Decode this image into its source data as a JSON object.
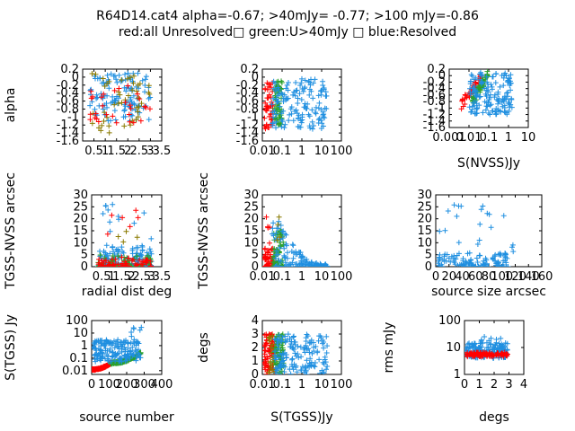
{
  "page": {
    "title_line1": "R64D14.cat4 alpha=-0.67; >40mJy= -0.77; >100 mJy=-0.86",
    "title_line2": "red:all Unresolved□ green:U>40mJy □ blue:Resolved"
  },
  "colors": {
    "red": "#ff0000",
    "green": "#2ca02c",
    "blue": "#1f8fe0",
    "olive": "#8a7a00"
  },
  "chart_data": [
    {
      "id": "p1",
      "type": "scatter",
      "title": "",
      "xlabel": "",
      "ylabel": "alpha",
      "xscale": "linear",
      "xlim": [
        0,
        3.5
      ],
      "yscale": "linear",
      "ylim": [
        -1.6,
        0.2
      ],
      "xticks": [
        "0.5",
        "1",
        "1.5",
        "2",
        "2.5",
        "3",
        "3.5"
      ],
      "yticks": [
        "0.2",
        "0",
        "-0.2",
        "-0.4",
        "-0.6",
        "-0.8",
        "-1",
        "-1.2",
        "-1.4",
        "-1.6"
      ],
      "series": [
        {
          "color": "blue",
          "cloud": {
            "n": 120,
            "x": [
              0.3,
              3.0
            ],
            "y": [
              -1.1,
              0.1
            ]
          }
        },
        {
          "color": "olive",
          "cloud": {
            "n": 45,
            "x": [
              0.3,
              3.0
            ],
            "y": [
              -1.4,
              0.1
            ]
          }
        },
        {
          "color": "red",
          "cloud": {
            "n": 30,
            "x": [
              0.3,
              3.0
            ],
            "y": [
              -1.2,
              -0.2
            ]
          }
        }
      ]
    },
    {
      "id": "p2",
      "type": "scatter",
      "title": "",
      "xlabel": "",
      "ylabel": "",
      "xscale": "log",
      "xlim": [
        0.01,
        100
      ],
      "yscale": "linear",
      "ylim": [
        -1.6,
        0.2
      ],
      "xticks": [
        "0.01",
        "0.1",
        "1",
        "10",
        "100"
      ],
      "yticks": [
        "0.2",
        "0",
        "-0.2",
        "-0.4",
        "-0.6",
        "-0.8",
        "-1",
        "-1.2",
        "-1.4",
        "-1.6"
      ],
      "series": [
        {
          "color": "red",
          "cloud": {
            "n": 45,
            "x": [
              0.012,
              0.035
            ],
            "y": [
              -1.3,
              -0.1
            ]
          }
        },
        {
          "color": "green",
          "cloud": {
            "n": 60,
            "x": [
              0.04,
              0.1
            ],
            "y": [
              -1.2,
              -0.1
            ]
          }
        },
        {
          "color": "blue",
          "cloud": {
            "n": 140,
            "x": [
              0.03,
              20
            ],
            "y": [
              -1.3,
              0.0
            ]
          }
        }
      ]
    },
    {
      "id": "p3",
      "type": "scatter",
      "title": "",
      "xlabel": "S(NVSS)Jy",
      "ylabel": "",
      "xscale": "log",
      "xlim": [
        0.001,
        10
      ],
      "yscale": "linear",
      "ylim": [
        -1.6,
        0.2
      ],
      "xticks": [
        "0.001",
        "0.01",
        "0.1",
        "1",
        "10"
      ],
      "yticks": [
        "0.2",
        "0",
        "-0.2",
        "-0.4",
        "-0.6",
        "-0.8",
        "-1",
        "-1.2",
        "-1.4",
        "-1.6"
      ],
      "series": [
        {
          "color": "red",
          "band": {
            "n": 40,
            "x": [
              0.004,
              0.04
            ],
            "y": [
              -0.9,
              -0.1
            ],
            "spread": 0.15
          }
        },
        {
          "color": "green",
          "band": {
            "n": 55,
            "x": [
              0.015,
              0.1
            ],
            "y": [
              -0.8,
              0.1
            ],
            "spread": 0.15
          }
        },
        {
          "color": "blue",
          "cloud": {
            "n": 150,
            "x": [
              0.01,
              1.5
            ],
            "y": [
              -1.2,
              0.1
            ]
          }
        }
      ]
    },
    {
      "id": "p4",
      "type": "scatter",
      "title": "",
      "xlabel": "radial dist deg",
      "ylabel": "TGSS-NVSS arcsec",
      "xscale": "linear",
      "xlim": [
        0,
        3.5
      ],
      "yscale": "linear",
      "ylim": [
        0,
        30
      ],
      "xticks": [
        "0.5",
        "1",
        "1.5",
        "2",
        "2.5",
        "3",
        "3.5"
      ],
      "yticks": [
        "0",
        "5",
        "10",
        "15",
        "20",
        "25",
        "30"
      ],
      "series": [
        {
          "color": "blue",
          "cloud": {
            "n": 160,
            "x": [
              0.3,
              3.0
            ],
            "y": [
              0,
              9
            ],
            "bias": 2.5
          }
        },
        {
          "color": "green",
          "cloud": {
            "n": 60,
            "x": [
              0.3,
              3.0
            ],
            "y": [
              0,
              5
            ],
            "bias": 2
          }
        },
        {
          "color": "red",
          "cloud": {
            "n": 60,
            "x": [
              0.3,
              3.0
            ],
            "y": [
              0,
              4
            ],
            "bias": 2
          }
        },
        {
          "color": "blue",
          "cloud": {
            "n": 12,
            "x": [
              0.5,
              3.0
            ],
            "y": [
              10,
              28
            ]
          }
        },
        {
          "color": "red",
          "cloud": {
            "n": 6,
            "x": [
              0.8,
              2.5
            ],
            "y": [
              12,
              24
            ]
          }
        },
        {
          "color": "olive",
          "cloud": {
            "n": 4,
            "x": [
              0.5,
              2.5
            ],
            "y": [
              5,
              16
            ]
          }
        }
      ]
    },
    {
      "id": "p5",
      "type": "scatter",
      "title": "",
      "xlabel": "",
      "ylabel": "TGSS-NVSS arcsec",
      "xscale": "log",
      "xlim": [
        0.01,
        100
      ],
      "yscale": "linear",
      "ylim": [
        0,
        30
      ],
      "xticks": [
        "0.01",
        "0.1",
        "1",
        "10",
        "100"
      ],
      "yticks": [
        "0",
        "5",
        "10",
        "15",
        "20",
        "25",
        "30"
      ],
      "series": [
        {
          "color": "red",
          "cloud": {
            "n": 50,
            "x": [
              0.012,
              0.04
            ],
            "y": [
              0,
              10
            ],
            "bias": 2
          }
        },
        {
          "color": "green",
          "cloud": {
            "n": 60,
            "x": [
              0.035,
              0.12
            ],
            "y": [
              0,
              15
            ],
            "bias": 2
          }
        },
        {
          "color": "blue",
          "decay": {
            "n": 150,
            "x": [
              0.03,
              20
            ],
            "y0": 25
          }
        },
        {
          "color": "red",
          "cloud": {
            "n": 4,
            "x": [
              0.015,
              0.03
            ],
            "y": [
              14,
              24
            ]
          }
        },
        {
          "color": "olive",
          "cloud": {
            "n": 4,
            "x": [
              0.03,
              0.08
            ],
            "y": [
              10,
              22
            ]
          }
        }
      ]
    },
    {
      "id": "p6",
      "type": "scatter",
      "title": "",
      "xlabel": "source size arcsec",
      "ylabel": "",
      "xscale": "linear",
      "xlim": [
        0,
        160
      ],
      "yscale": "linear",
      "ylim": [
        0,
        30
      ],
      "xticks": [
        "0",
        "20",
        "40",
        "60",
        "80",
        "100",
        "120",
        "140",
        "160"
      ],
      "yticks": [
        "0",
        "5",
        "10",
        "15",
        "20",
        "25",
        "30"
      ],
      "series": [
        {
          "color": "blue",
          "cloud": {
            "n": 110,
            "x": [
              2,
              110
            ],
            "y": [
              0,
              6
            ],
            "bias": 2
          }
        },
        {
          "color": "blue",
          "cloud": {
            "n": 20,
            "x": [
              5,
              120
            ],
            "y": [
              6,
              26
            ]
          }
        }
      ]
    },
    {
      "id": "p7",
      "type": "scatter",
      "title": "",
      "xlabel": "source number",
      "ylabel": "S(TGSS) Jy",
      "xscale": "linear",
      "xlim": [
        0,
        400
      ],
      "yscale": "log",
      "ylim": [
        0.005,
        100
      ],
      "xticks": [
        "0",
        "100",
        "200",
        "300",
        "400"
      ],
      "yticks": [
        "0.01",
        "0.1",
        "1",
        "10",
        "100"
      ],
      "series": [
        {
          "color": "red",
          "curve": {
            "n": 110,
            "x": [
              0,
              110
            ],
            "y": [
              0.012,
              0.04
            ],
            "spread": 0.05
          }
        },
        {
          "color": "green",
          "curve": {
            "n": 150,
            "x": [
              110,
              280
            ],
            "y": [
              0.04,
              0.25
            ],
            "spread": 0.08
          }
        },
        {
          "color": "blue",
          "cloud": {
            "n": 160,
            "x": [
              5,
              280
            ],
            "y": [
              0.05,
              3
            ],
            "log": true
          }
        },
        {
          "color": "blue",
          "cloud": {
            "n": 6,
            "x": [
              220,
              290
            ],
            "y": [
              5,
              30
            ],
            "log": true
          }
        }
      ]
    },
    {
      "id": "p8",
      "type": "scatter",
      "title": "",
      "xlabel": "S(TGSS)Jy",
      "ylabel": "degs",
      "xscale": "log",
      "xlim": [
        0.01,
        100
      ],
      "yscale": "linear",
      "ylim": [
        0,
        4
      ],
      "xticks": [
        "0.01",
        "0.1",
        "1",
        "10",
        "100"
      ],
      "yticks": [
        "0",
        "1",
        "2",
        "3",
        "4"
      ],
      "series": [
        {
          "color": "red",
          "cloud": {
            "n": 70,
            "x": [
              0.012,
              0.04
            ],
            "y": [
              0,
              3
            ]
          }
        },
        {
          "color": "olive",
          "cloud": {
            "n": 30,
            "x": [
              0.02,
              0.05
            ],
            "y": [
              0,
              3
            ]
          }
        },
        {
          "color": "green",
          "cloud": {
            "n": 60,
            "x": [
              0.04,
              0.12
            ],
            "y": [
              0,
              3
            ]
          }
        },
        {
          "color": "blue",
          "cloud": {
            "n": 150,
            "x": [
              0.04,
              20
            ],
            "y": [
              0,
              3
            ]
          }
        }
      ]
    },
    {
      "id": "p9",
      "type": "scatter",
      "title": "",
      "xlabel": "degs",
      "ylabel": "rms mJy",
      "xscale": "linear",
      "xlim": [
        0,
        4
      ],
      "yscale": "log",
      "ylim": [
        1,
        100
      ],
      "xticks": [
        "0",
        "1",
        "2",
        "3",
        "4"
      ],
      "yticks": [
        "1",
        "10",
        "100"
      ],
      "series": [
        {
          "color": "blue",
          "cloud": {
            "n": 150,
            "x": [
              0.1,
              2.9
            ],
            "y": [
              4,
              15
            ],
            "log": true
          }
        },
        {
          "color": "red",
          "band": {
            "n": 90,
            "x": [
              0.1,
              3.0
            ],
            "y": [
              5.5,
              5.5
            ],
            "spread": 0.08,
            "log": true
          }
        },
        {
          "color": "blue",
          "cloud": {
            "n": 8,
            "x": [
              1.0,
              2.5
            ],
            "y": [
              15,
              28
            ],
            "log": true
          }
        }
      ]
    }
  ]
}
